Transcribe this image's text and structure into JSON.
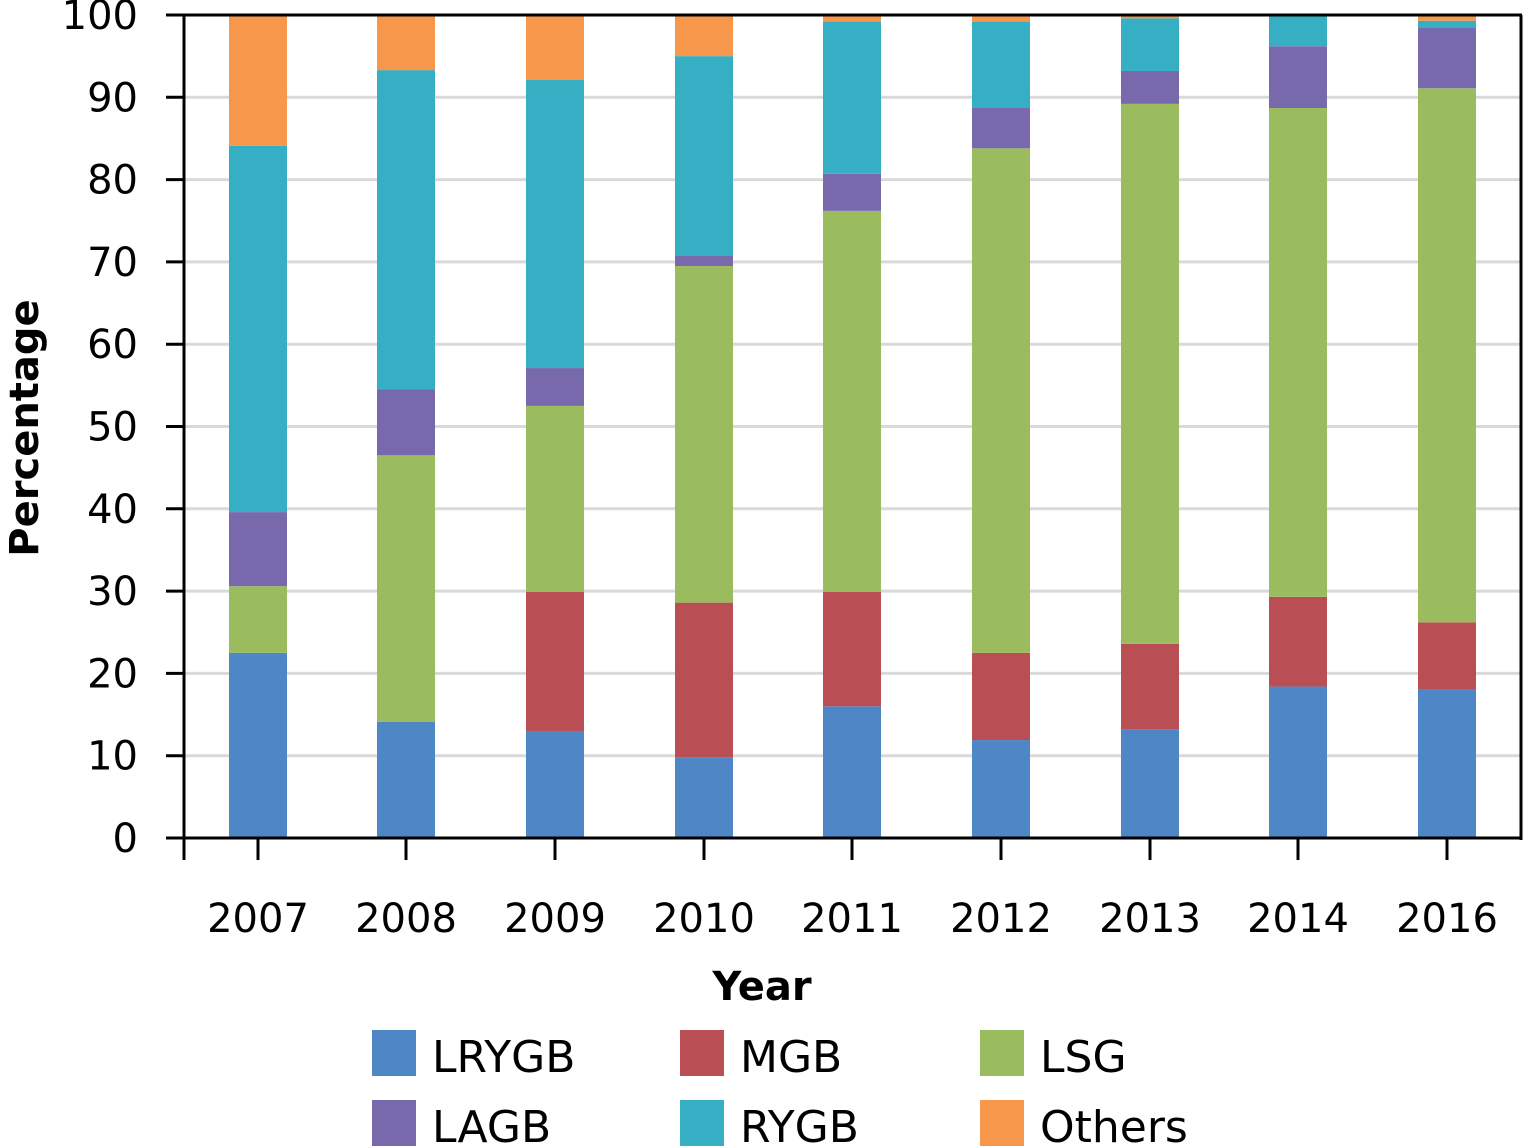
{
  "chart_data": {
    "type": "bar",
    "stacked": true,
    "title": "",
    "xlabel": "Year",
    "ylabel": "Percentage",
    "ylim": [
      0,
      100
    ],
    "yticks": [
      0,
      10,
      20,
      30,
      40,
      50,
      60,
      70,
      80,
      90,
      100
    ],
    "grid": true,
    "legend_position": "bottom",
    "categories": [
      "2007",
      "2008",
      "2009",
      "2010",
      "2011",
      "2012",
      "2013",
      "2014",
      "2016"
    ],
    "series": [
      {
        "name": "LRYGB",
        "color": "#4f86c6",
        "values": [
          22.5,
          14.1,
          12.9,
          9.8,
          16.0,
          11.9,
          13.2,
          18.4,
          18.0
        ]
      },
      {
        "name": "MGB",
        "color": "#b94f54",
        "values": [
          0,
          0,
          17.0,
          18.8,
          13.9,
          10.6,
          10.4,
          10.9,
          8.2
        ]
      },
      {
        "name": "LSG",
        "color": "#9bbb5f",
        "values": [
          8.1,
          32.4,
          22.6,
          40.9,
          46.3,
          61.3,
          65.6,
          59.4,
          64.9
        ]
      },
      {
        "name": "LAGB",
        "color": "#7869ad",
        "values": [
          9.0,
          8.0,
          4.6,
          1.3,
          4.5,
          4.9,
          4.0,
          7.5,
          7.4
        ]
      },
      {
        "name": "RYGB",
        "color": "#36aec4",
        "values": [
          44.5,
          38.8,
          35.0,
          24.2,
          18.5,
          10.5,
          6.4,
          3.8,
          0.8
        ]
      },
      {
        "name": "Others",
        "color": "#f6974b",
        "values": [
          15.9,
          6.7,
          7.9,
          5.0,
          0.8,
          0.8,
          0.4,
          0.0,
          0.7
        ]
      }
    ]
  }
}
